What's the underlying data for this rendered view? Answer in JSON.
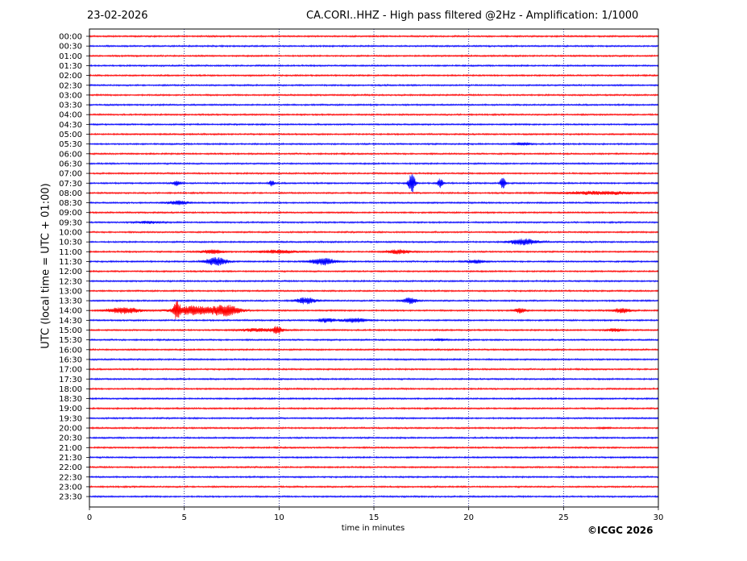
{
  "header": {
    "date": "23-02-2026",
    "title": "CA.CORI..HHZ - High pass filtered @2Hz - Amplification: 1/1000"
  },
  "footer": {
    "copyright": "©ICGC 2026"
  },
  "colors": {
    "trace_red": "#ff0000",
    "trace_blue": "#0000ff",
    "grid": "#000080"
  },
  "chart_data": {
    "type": "line",
    "xlabel": "time in minutes",
    "ylabel": "UTC (local time = UTC + 01:00)",
    "xlim": [
      0,
      30
    ],
    "x_ticks": [
      0,
      5,
      10,
      15,
      20,
      25,
      30
    ],
    "vertical_grid": [
      5,
      10,
      15,
      20,
      25
    ],
    "grid": "dotted vertical",
    "rows": [
      "00:00",
      "00:30",
      "01:00",
      "01:30",
      "02:00",
      "02:30",
      "03:00",
      "03:30",
      "04:00",
      "04:30",
      "05:00",
      "05:30",
      "06:00",
      "06:30",
      "07:00",
      "07:30",
      "08:00",
      "08:30",
      "09:00",
      "09:30",
      "10:00",
      "10:30",
      "11:00",
      "11:30",
      "12:00",
      "12:30",
      "13:00",
      "13:30",
      "14:00",
      "14:30",
      "15:00",
      "15:30",
      "16:00",
      "16:30",
      "17:00",
      "17:30",
      "18:00",
      "18:30",
      "19:00",
      "19:30",
      "20:00",
      "20:30",
      "21:00",
      "21:30",
      "22:00",
      "22:30",
      "23:00",
      "23:30"
    ],
    "row_colors": "alternating red (full hour) / blue (half hour)",
    "events": [
      {
        "row": "05:30",
        "center_min": 22.9,
        "width_min": 0.6,
        "amp": 0.12
      },
      {
        "row": "07:30",
        "center_min": 4.6,
        "width_min": 0.3,
        "amp": 0.25
      },
      {
        "row": "07:30",
        "center_min": 9.6,
        "width_min": 0.2,
        "amp": 0.3
      },
      {
        "row": "07:30",
        "center_min": 17.0,
        "width_min": 0.25,
        "amp": 1.0
      },
      {
        "row": "07:30",
        "center_min": 18.5,
        "width_min": 0.2,
        "amp": 0.5
      },
      {
        "row": "07:30",
        "center_min": 21.8,
        "width_min": 0.2,
        "amp": 0.6
      },
      {
        "row": "08:00",
        "center_min": 27.0,
        "width_min": 3.0,
        "amp": 0.15
      },
      {
        "row": "08:30",
        "center_min": 4.7,
        "width_min": 0.8,
        "amp": 0.18
      },
      {
        "row": "09:30",
        "center_min": 3.1,
        "width_min": 0.8,
        "amp": 0.12
      },
      {
        "row": "10:30",
        "center_min": 22.9,
        "width_min": 1.0,
        "amp": 0.3
      },
      {
        "row": "11:00",
        "center_min": 6.5,
        "width_min": 0.8,
        "amp": 0.2
      },
      {
        "row": "11:00",
        "center_min": 9.9,
        "width_min": 1.5,
        "amp": 0.15
      },
      {
        "row": "11:00",
        "center_min": 16.3,
        "width_min": 0.9,
        "amp": 0.2
      },
      {
        "row": "11:30",
        "center_min": 6.7,
        "width_min": 0.8,
        "amp": 0.4
      },
      {
        "row": "11:30",
        "center_min": 12.3,
        "width_min": 0.9,
        "amp": 0.35
      },
      {
        "row": "11:30",
        "center_min": 20.4,
        "width_min": 0.7,
        "amp": 0.15
      },
      {
        "row": "13:30",
        "center_min": 11.4,
        "width_min": 0.7,
        "amp": 0.3
      },
      {
        "row": "13:30",
        "center_min": 16.9,
        "width_min": 0.5,
        "amp": 0.3
      },
      {
        "row": "14:00",
        "center_min": 1.8,
        "width_min": 1.2,
        "amp": 0.3
      },
      {
        "row": "14:00",
        "center_min": 4.6,
        "width_min": 0.25,
        "amp": 0.8
      },
      {
        "row": "14:00",
        "center_min": 5.5,
        "width_min": 1.5,
        "amp": 0.45
      },
      {
        "row": "14:00",
        "center_min": 7.2,
        "width_min": 1.0,
        "amp": 0.55
      },
      {
        "row": "14:00",
        "center_min": 22.7,
        "width_min": 0.4,
        "amp": 0.25
      },
      {
        "row": "14:00",
        "center_min": 28.1,
        "width_min": 0.6,
        "amp": 0.25
      },
      {
        "row": "14:30",
        "center_min": 12.5,
        "width_min": 0.7,
        "amp": 0.2
      },
      {
        "row": "14:30",
        "center_min": 14.0,
        "width_min": 0.9,
        "amp": 0.2
      },
      {
        "row": "15:00",
        "center_min": 9.0,
        "width_min": 1.5,
        "amp": 0.15
      },
      {
        "row": "15:00",
        "center_min": 9.9,
        "width_min": 0.3,
        "amp": 0.35
      },
      {
        "row": "15:00",
        "center_min": 27.7,
        "width_min": 0.6,
        "amp": 0.15
      },
      {
        "row": "15:30",
        "center_min": 18.5,
        "width_min": 0.6,
        "amp": 0.1
      },
      {
        "row": "20:00",
        "center_min": 27.2,
        "width_min": 0.4,
        "amp": 0.08
      }
    ]
  }
}
